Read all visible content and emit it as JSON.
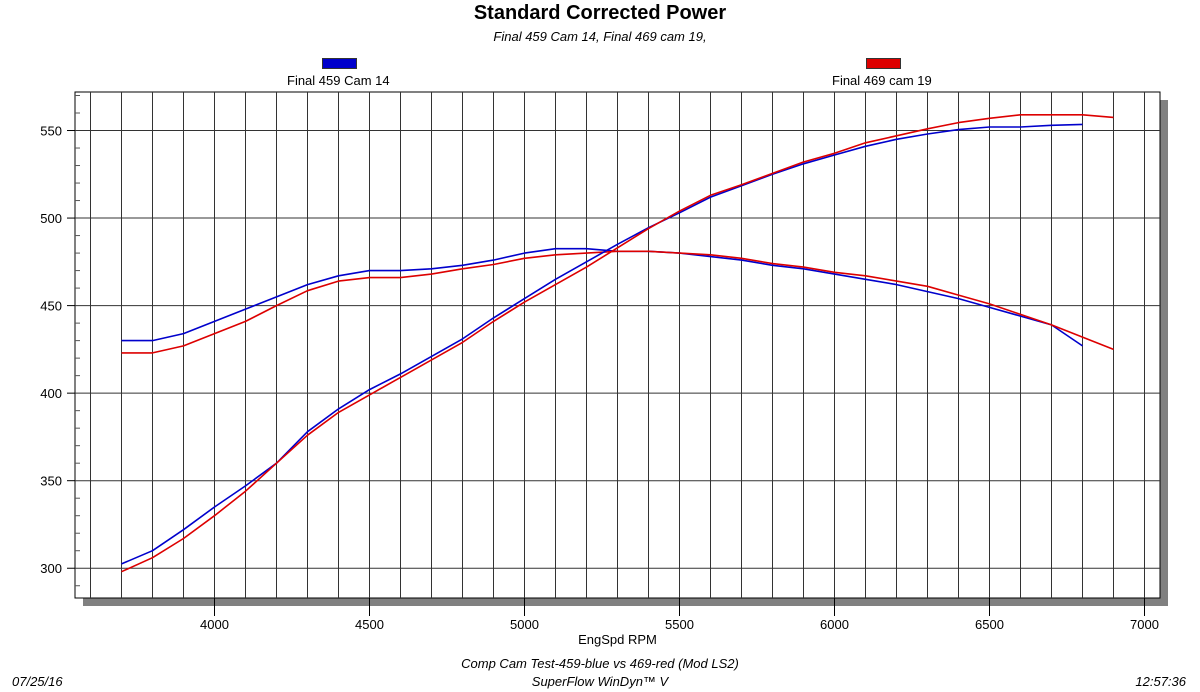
{
  "chart_data": {
    "type": "line",
    "title": "Standard Corrected Power",
    "subtitle": "Final 459 Cam 14, Final 469 cam 19,",
    "xlabel": "EngSpd RPM",
    "ylabel": "",
    "xlim": [
      3550,
      7050
    ],
    "ylim": [
      283,
      572
    ],
    "xticks": [
      4000,
      4500,
      5000,
      5500,
      6000,
      6500,
      7000
    ],
    "yticks": [
      300,
      350,
      400,
      450,
      500,
      550
    ],
    "grid": true,
    "legend_position": "top",
    "legend": [
      {
        "name": "Final 459 Cam 14",
        "color": "#0000cc"
      },
      {
        "name": "Final 469 cam 19",
        "color": "#dd0000"
      }
    ],
    "series": [
      {
        "legend": 0,
        "color": "#0000cc",
        "x": [
          3700,
          3800,
          3900,
          4000,
          4100,
          4200,
          4300,
          4400,
          4500,
          4600,
          4700,
          4800,
          4900,
          5000,
          5100,
          5200,
          5300,
          5400,
          5500,
          5600,
          5700,
          5800,
          5900,
          6000,
          6100,
          6200,
          6300,
          6400,
          6500,
          6600,
          6700,
          6800
        ],
        "values": [
          430,
          430,
          434,
          441,
          448,
          455,
          462,
          467,
          470,
          470,
          471,
          473,
          476,
          480,
          482.5,
          482.5,
          481,
          481,
          480,
          478,
          476,
          473,
          471,
          468,
          465,
          462,
          458,
          454,
          449,
          444,
          439,
          427
        ]
      },
      {
        "legend": 1,
        "color": "#dd0000",
        "x": [
          3700,
          3800,
          3900,
          4000,
          4100,
          4200,
          4300,
          4400,
          4500,
          4600,
          4700,
          4800,
          4900,
          5000,
          5100,
          5200,
          5300,
          5400,
          5500,
          5600,
          5700,
          5800,
          5900,
          6000,
          6100,
          6200,
          6300,
          6400,
          6500,
          6600,
          6700,
          6800,
          6900
        ],
        "values": [
          423,
          423,
          427,
          434,
          441,
          450,
          458.5,
          464,
          466,
          466,
          468,
          471,
          473.5,
          477,
          479,
          480,
          481,
          481,
          480,
          479,
          477,
          474,
          472,
          469,
          467,
          464,
          461,
          456,
          451,
          445,
          439,
          432,
          425
        ]
      },
      {
        "legend": 0,
        "color": "#0000cc",
        "x": [
          3700,
          3800,
          3900,
          4000,
          4100,
          4200,
          4300,
          4400,
          4500,
          4600,
          4700,
          4800,
          4900,
          5000,
          5100,
          5200,
          5300,
          5400,
          5500,
          5600,
          5700,
          5800,
          5900,
          6000,
          6100,
          6200,
          6300,
          6400,
          6500,
          6600,
          6700,
          6800
        ],
        "values": [
          302.5,
          310,
          322,
          335,
          347,
          360,
          378,
          391,
          402,
          411,
          421,
          431,
          443,
          454,
          465,
          475,
          485,
          494.5,
          503,
          512,
          518.5,
          525,
          531,
          536,
          541,
          545,
          548,
          550.5,
          552,
          552,
          553,
          553.5
        ]
      },
      {
        "legend": 1,
        "color": "#dd0000",
        "x": [
          3700,
          3800,
          3900,
          4000,
          4100,
          4200,
          4300,
          4400,
          4500,
          4600,
          4700,
          4800,
          4900,
          5000,
          5100,
          5200,
          5300,
          5400,
          5500,
          5600,
          5700,
          5800,
          5900,
          6000,
          6100,
          6200,
          6300,
          6400,
          6500,
          6600,
          6700,
          6800,
          6900
        ],
        "values": [
          298,
          306,
          317,
          330,
          344,
          360,
          376,
          389,
          399,
          409,
          419,
          429,
          441,
          452,
          462,
          472,
          483,
          494,
          504,
          513,
          519,
          525.5,
          532,
          537,
          543,
          547,
          551,
          554.5,
          557,
          559,
          559,
          559,
          557.5
        ]
      }
    ]
  },
  "footer": {
    "description": "Comp Cam Test-459-blue vs 469-red (Mod LS2)",
    "software": "SuperFlow WinDyn™ V",
    "date": "07/25/16",
    "time": "12:57:36"
  }
}
